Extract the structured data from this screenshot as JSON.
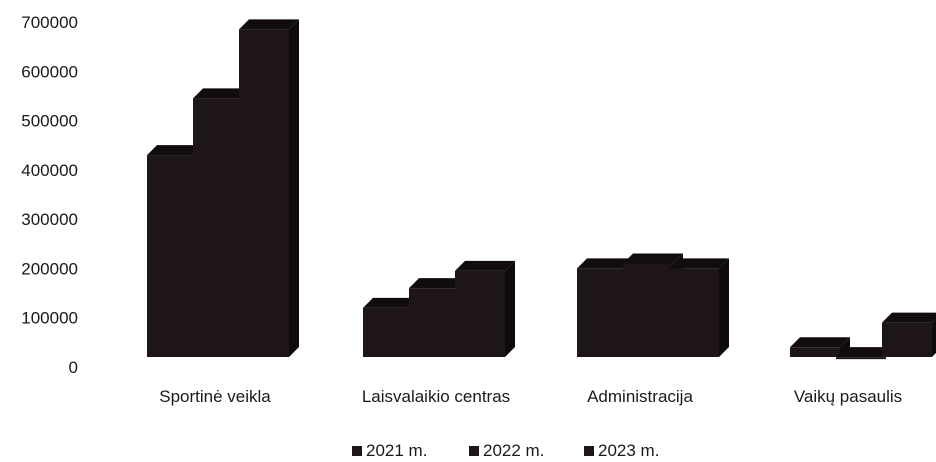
{
  "chart_data": {
    "type": "bar",
    "title": "",
    "xlabel": "",
    "ylabel": "",
    "ylim": [
      0,
      700000
    ],
    "yticks": [
      0,
      100000,
      200000,
      300000,
      400000,
      500000,
      600000,
      700000
    ],
    "categories": [
      "Sportinė veikla",
      "Laisvalaikio centras",
      "Administracija",
      "Vaikų pasaulis"
    ],
    "series": [
      {
        "name": "2021 m.",
        "values": [
          430000,
          120000,
          200000,
          40000
        ]
      },
      {
        "name": "2022 m.",
        "values": [
          545000,
          160000,
          210000,
          20000
        ]
      },
      {
        "name": "2023 m.",
        "values": [
          685000,
          195000,
          200000,
          90000
        ]
      }
    ],
    "legend_position": "bottom",
    "grid": false,
    "style": "3d-stepped-columns",
    "colors": {
      "bar_front": "#1d1518",
      "bar_top": "#120c0e",
      "bar_side": "#0f0a0c"
    }
  }
}
